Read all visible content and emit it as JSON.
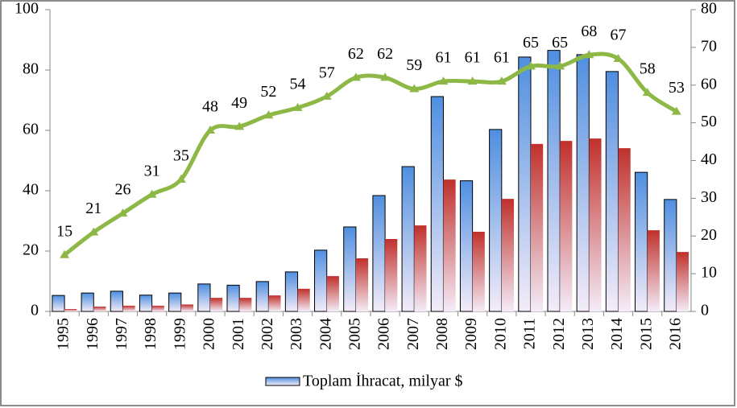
{
  "chart_data": {
    "type": "bar",
    "categories": [
      "1995",
      "1996",
      "1997",
      "1998",
      "1999",
      "2000",
      "2001",
      "2002",
      "2003",
      "2004",
      "2005",
      "2006",
      "2007",
      "2008",
      "2009",
      "2010",
      "2011",
      "2012",
      "2013",
      "2014",
      "2015",
      "2016"
    ],
    "series": [
      {
        "name": "Toplam İhracat, milyar $",
        "color": "#4f8fe0",
        "values": [
          5.3,
          6.1,
          6.7,
          5.4,
          6.1,
          9.1,
          8.7,
          9.9,
          13.1,
          20.3,
          28,
          38.4,
          48,
          71.2,
          43.3,
          60.3,
          84.3,
          86.5,
          85.1,
          79.5,
          46.1,
          37.1
        ]
      },
      {
        "color": "#c0302b",
        "values": [
          0.8,
          1.6,
          1.9,
          1.9,
          2.3,
          4.5,
          4.5,
          5.3,
          7.5,
          11.7,
          17.6,
          24,
          28.5,
          43.7,
          26.4,
          37.3,
          55.5,
          56.5,
          57.3,
          54.1,
          26.9,
          19.7
        ]
      },
      {
        "type": "line",
        "axis": "y2",
        "color": "#8db846",
        "values": [
          15,
          21,
          26,
          31,
          35,
          48,
          49,
          52,
          54,
          57,
          62,
          62,
          59,
          61,
          61,
          61,
          65,
          65,
          68,
          67,
          58,
          53
        ]
      }
    ],
    "ylim": [
      0,
      100
    ],
    "yticks": [
      0,
      20,
      40,
      60,
      80,
      100
    ],
    "y2lim": [
      0,
      80
    ],
    "y2ticks": [
      0,
      10,
      20,
      30,
      40,
      50,
      60,
      70,
      80
    ],
    "grid": false
  }
}
